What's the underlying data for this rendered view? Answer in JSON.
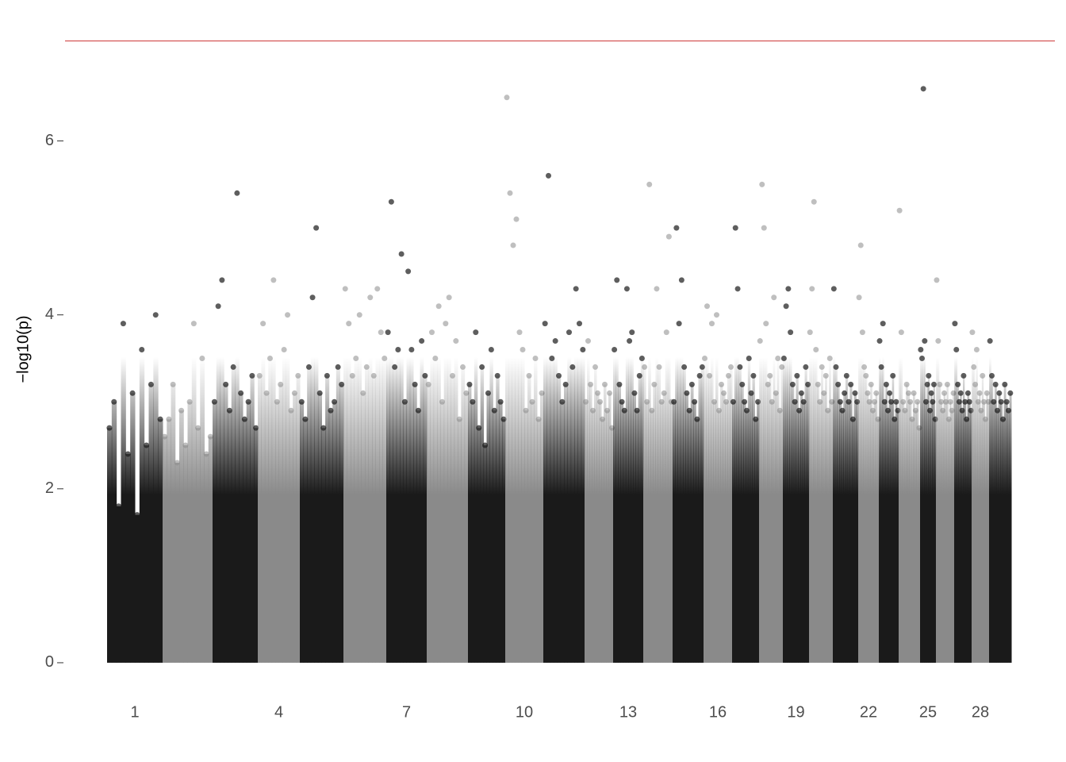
{
  "chart_data": {
    "type": "manhattan",
    "y_label": "−log10(p)",
    "categories": [
      "1",
      null,
      null,
      "4",
      null,
      null,
      "7",
      null,
      null,
      "10",
      null,
      null,
      "13",
      null,
      null,
      "16",
      null,
      null,
      "19",
      null,
      null,
      "22",
      null,
      null,
      "25",
      null,
      null,
      "28",
      null
    ],
    "values": [
      [
        2.7,
        3.0,
        1.8,
        3.9,
        2.4,
        3.1,
        1.7,
        3.6,
        2.5,
        3.2,
        4.0,
        2.8
      ],
      [
        2.6,
        2.8,
        3.2,
        2.3,
        2.9,
        2.5,
        3.0,
        3.9,
        2.7,
        3.5,
        2.4,
        2.6
      ],
      [
        3.0,
        4.1,
        4.4,
        3.2,
        2.9,
        3.4,
        5.4,
        3.1,
        2.8,
        3.0,
        3.3,
        2.7
      ],
      [
        3.3,
        3.9,
        3.1,
        3.5,
        4.4,
        3.0,
        3.2,
        3.6,
        4.0,
        2.9,
        3.1,
        3.3
      ],
      [
        3.0,
        2.8,
        3.4,
        4.2,
        5.0,
        3.1,
        2.7,
        3.3,
        2.9,
        3.0,
        3.4,
        3.2
      ],
      [
        4.3,
        3.9,
        3.3,
        3.5,
        4.0,
        3.1,
        3.4,
        4.2,
        3.3,
        4.3,
        3.8,
        3.5
      ],
      [
        3.8,
        5.3,
        3.4,
        3.6,
        4.7,
        3.0,
        4.5,
        3.6,
        3.2,
        2.9,
        3.7,
        3.3
      ],
      [
        3.2,
        3.8,
        3.5,
        4.1,
        3.0,
        3.9,
        4.2,
        3.3,
        3.7,
        2.8,
        3.4,
        3.1
      ],
      [
        3.2,
        3.0,
        3.8,
        2.7,
        3.4,
        2.5,
        3.1,
        3.6,
        2.9,
        3.3,
        3.0,
        2.8
      ],
      [
        6.5,
        5.4,
        4.8,
        5.1,
        3.8,
        3.6,
        2.9,
        3.3,
        3.0,
        3.5,
        2.8,
        3.1
      ],
      [
        3.9,
        5.6,
        3.5,
        3.7,
        3.3,
        3.0,
        3.2,
        3.8,
        3.4,
        4.3,
        3.9,
        3.6
      ],
      [
        3.0,
        3.7,
        3.2,
        2.9,
        3.4,
        3.1,
        3.0,
        2.8,
        3.2,
        2.9,
        3.1,
        2.7
      ],
      [
        3.6,
        4.4,
        3.2,
        3.0,
        2.9,
        4.3,
        3.7,
        3.8,
        3.1,
        2.9,
        3.3,
        3.5
      ],
      [
        3.4,
        3.0,
        5.5,
        2.9,
        3.2,
        4.3,
        3.4,
        3.0,
        3.1,
        3.8,
        4.9,
        3.0
      ],
      [
        3.0,
        5.0,
        3.9,
        4.4,
        3.4,
        3.1,
        2.9,
        3.2,
        3.0,
        2.8,
        3.3,
        3.4
      ],
      [
        3.5,
        4.1,
        3.3,
        3.9,
        3.0,
        4.0,
        2.9,
        3.2,
        3.1,
        3.0,
        3.3,
        3.4
      ],
      [
        3.0,
        5.0,
        4.3,
        3.4,
        3.2,
        3.0,
        2.9,
        3.5,
        3.1,
        3.3,
        2.8,
        3.0
      ],
      [
        3.7,
        5.5,
        5.0,
        3.9,
        3.2,
        3.3,
        3.0,
        4.2,
        3.1,
        3.5,
        2.9,
        3.4
      ],
      [
        3.5,
        4.1,
        4.3,
        3.8,
        3.2,
        3.0,
        3.3,
        2.9,
        3.1,
        3.0,
        3.4,
        3.2
      ],
      [
        3.8,
        4.3,
        5.3,
        3.6,
        3.2,
        3.0,
        3.4,
        3.1,
        3.3,
        2.9,
        3.5,
        3.0
      ],
      [
        4.3,
        3.4,
        3.2,
        3.0,
        2.9,
        3.1,
        3.3,
        3.0,
        3.2,
        2.8,
        3.1,
        3.0
      ],
      [
        4.2,
        4.8,
        3.8,
        3.4,
        3.3,
        3.1,
        3.0,
        3.2,
        2.9,
        3.0,
        3.1,
        2.8
      ],
      [
        3.7,
        3.4,
        3.9,
        3.0,
        3.2,
        2.9,
        3.1,
        3.0,
        3.3,
        2.8,
        3.0,
        2.9
      ],
      [
        5.2,
        3.8,
        3.0,
        2.9,
        3.2,
        3.1,
        3.0,
        2.8,
        3.1,
        2.9,
        3.0,
        2.7
      ],
      [
        3.6,
        3.5,
        6.6,
        3.7,
        3.0,
        3.2,
        3.3,
        2.9,
        3.1,
        3.0,
        3.2,
        2.8
      ],
      [
        4.4,
        3.7,
        3.2,
        3.0,
        2.9,
        3.1,
        3.0,
        3.2,
        2.8,
        3.0,
        2.9,
        3.1
      ],
      [
        3.9,
        3.6,
        3.2,
        3.0,
        3.1,
        2.9,
        3.3,
        3.0,
        2.8,
        3.1,
        3.0,
        2.9
      ],
      [
        3.8,
        3.4,
        3.2,
        3.6,
        3.0,
        3.1,
        2.9,
        3.3,
        3.0,
        2.8,
        3.1,
        3.0
      ],
      [
        3.7,
        3.3,
        3.0,
        3.2,
        2.9,
        3.1,
        3.0,
        2.8,
        3.2,
        3.0,
        2.9,
        3.1
      ]
    ],
    "colors": [
      "#1a1a1a",
      "#8a8a8a"
    ],
    "threshold": 7.15,
    "threshold_color": "#cc3333",
    "ylim": [
      -0.32,
      7.21
    ],
    "yticks": [
      0,
      2,
      4,
      6
    ]
  }
}
